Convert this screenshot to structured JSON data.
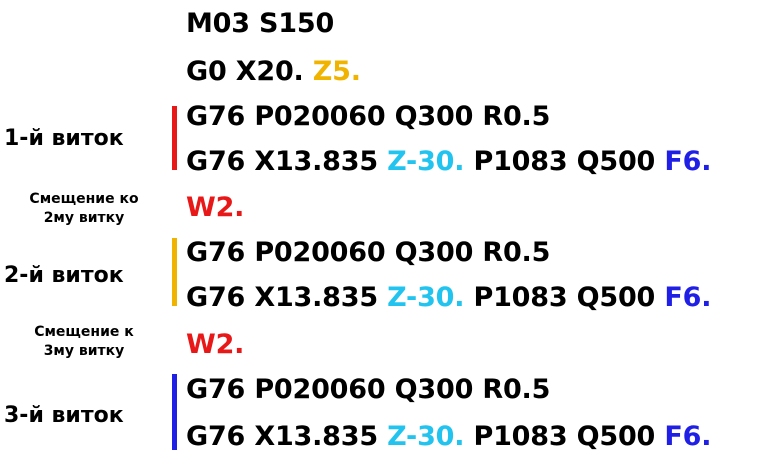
{
  "colors": {
    "yellow": "#f0b400",
    "cyan": "#22c4ef",
    "blue": "#1f1fe6",
    "red": "#e81818"
  },
  "code": {
    "l1": "M03 S150",
    "l2a": "G0 X20. ",
    "l2b": "Z5.",
    "p76": "G76 P020060 Q300 R0.5",
    "x76a": "G76 X13.835 ",
    "x76z": "Z-30.",
    "x76b": " P1083 Q500 ",
    "x76f": "F6.",
    "w2": "W2."
  },
  "labels": {
    "turn1": "1-й виток",
    "shift1a": "Смещение ко",
    "shift1b": "2му витку",
    "turn2": "2-й виток",
    "shift2a": "Смещение к",
    "shift2b": "3му витку",
    "turn3": "3-й виток"
  }
}
